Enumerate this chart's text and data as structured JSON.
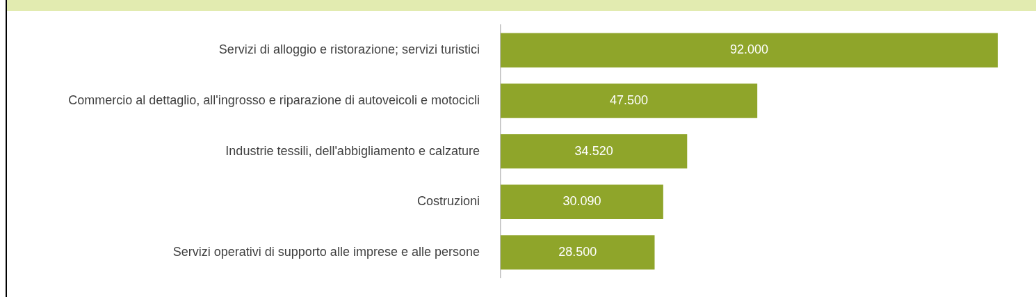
{
  "chart_data": {
    "type": "bar",
    "orientation": "horizontal",
    "categories": [
      "Servizi di alloggio e ristorazione; servizi turistici",
      "Commercio al dettaglio, all'ingrosso e riparazione di autoveicoli e motocicli",
      "Industrie tessili, dell'abbigliamento e calzature",
      "Costruzioni",
      "Servizi operativi di supporto alle imprese e alle persone"
    ],
    "values": [
      92000,
      47500,
      34520,
      30090,
      28500
    ],
    "value_labels": [
      "92.000",
      "47.500",
      "34.520",
      "30.090",
      "28.500"
    ],
    "color": "#8fa52a"
  }
}
